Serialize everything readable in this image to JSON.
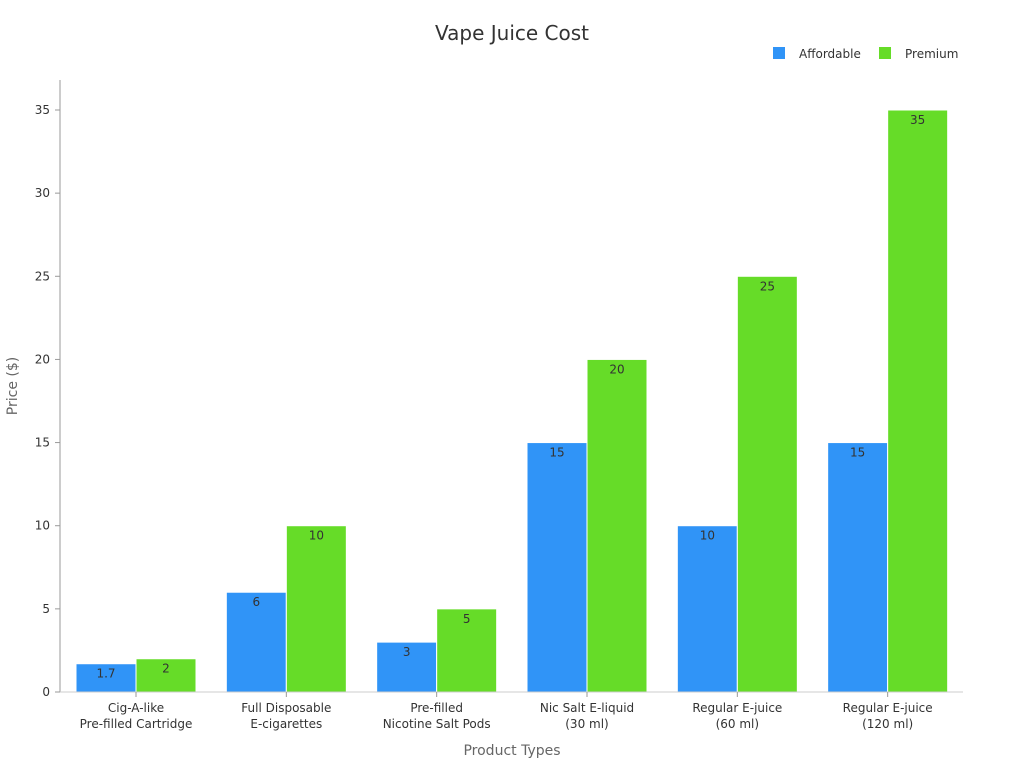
{
  "chart_data": {
    "type": "bar",
    "title": "Vape Juice Cost",
    "xlabel": "Product Types",
    "ylabel": "Price ($)",
    "ylim": [
      0,
      37
    ],
    "yticks": [
      0,
      5,
      10,
      15,
      20,
      25,
      30,
      35
    ],
    "grid": false,
    "legend_position": "top-right",
    "categories": [
      [
        "Cig-A-like",
        "Pre-filled Cartridge"
      ],
      [
        "Full Disposable",
        "E-cigarettes"
      ],
      [
        "Pre-filled",
        "Nicotine Salt Pods"
      ],
      [
        "Nic Salt E-liquid",
        "(30 ml)"
      ],
      [
        "Regular E-juice",
        "(60 ml)"
      ],
      [
        "Regular E-juice",
        "(120 ml)"
      ]
    ],
    "series": [
      {
        "name": "Affordable",
        "color": "#3094f7",
        "values": [
          1.7,
          6,
          3,
          15,
          10,
          15
        ]
      },
      {
        "name": "Premium",
        "color": "#66dc28",
        "values": [
          2,
          10,
          5,
          20,
          25,
          35
        ]
      }
    ]
  }
}
